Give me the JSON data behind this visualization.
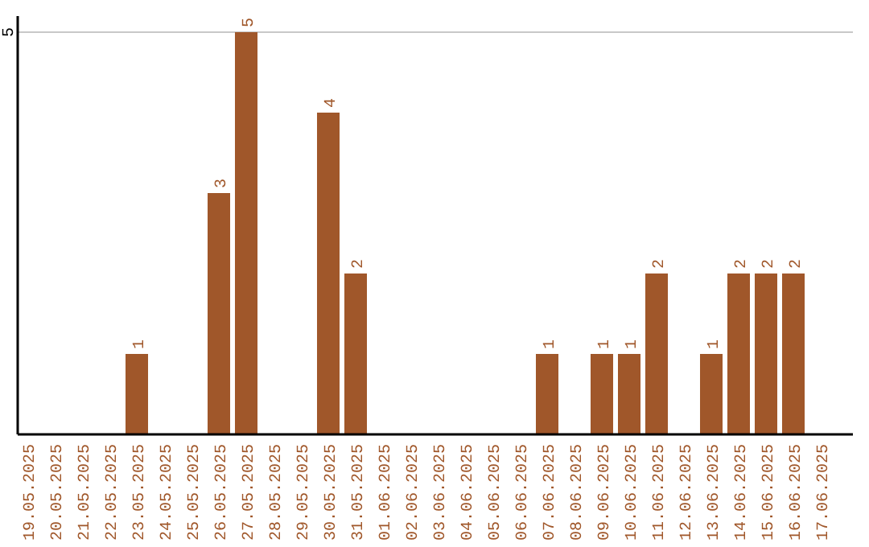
{
  "chart_data": {
    "type": "bar",
    "categories": [
      "19.05.2025",
      "20.05.2025",
      "21.05.2025",
      "22.05.2025",
      "23.05.2025",
      "24.05.2025",
      "25.05.2025",
      "26.05.2025",
      "27.05.2025",
      "28.05.2025",
      "29.05.2025",
      "30.05.2025",
      "31.05.2025",
      "01.06.2025",
      "02.06.2025",
      "03.06.2025",
      "04.06.2025",
      "05.06.2025",
      "06.06.2025",
      "07.06.2025",
      "08.06.2025",
      "09.06.2025",
      "10.06.2025",
      "11.06.2025",
      "12.06.2025",
      "13.06.2025",
      "14.06.2025",
      "15.06.2025",
      "16.06.2025",
      "17.06.2025"
    ],
    "values": [
      0,
      0,
      0,
      0,
      1,
      0,
      0,
      3,
      5,
      0,
      0,
      4,
      2,
      0,
      0,
      0,
      0,
      0,
      0,
      1,
      0,
      1,
      1,
      2,
      0,
      1,
      2,
      2,
      2,
      0
    ],
    "value_labels": [
      null,
      null,
      null,
      null,
      "1",
      null,
      null,
      "3",
      "5",
      null,
      null,
      "4",
      "2",
      null,
      null,
      null,
      null,
      null,
      null,
      "1",
      null,
      "1",
      "1",
      "2",
      null,
      "1",
      "2",
      "2",
      "2",
      null
    ],
    "color": "#a0572a",
    "ylim": [
      0,
      5.2
    ],
    "yticks": [
      5
    ],
    "grid": "y"
  }
}
